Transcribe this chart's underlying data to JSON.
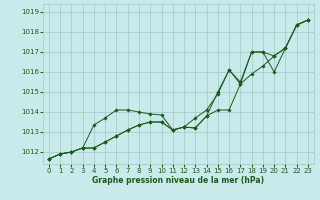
{
  "xlabel": "Graphe pression niveau de la mer (hPa)",
  "bg_color": "#c8eaea",
  "grid_color": "#a0c8c8",
  "line_color": "#1a5c1a",
  "x_ticks": [
    0,
    1,
    2,
    3,
    4,
    5,
    6,
    7,
    8,
    9,
    10,
    11,
    12,
    13,
    14,
    15,
    16,
    17,
    18,
    19,
    20,
    21,
    22,
    23
  ],
  "y_ticks": [
    1012,
    1013,
    1014,
    1015,
    1016,
    1017,
    1018,
    1019
  ],
  "ylim": [
    1011.4,
    1019.4
  ],
  "xlim": [
    -0.5,
    23.5
  ],
  "series": [
    [
      1011.65,
      1011.9,
      1012.0,
      1012.2,
      1013.35,
      1013.7,
      1014.1,
      1014.1,
      1014.0,
      1013.9,
      1013.85,
      1013.1,
      1013.25,
      1013.7,
      1014.1,
      1014.9,
      1016.1,
      1015.5,
      1017.0,
      1017.0,
      1016.0,
      1017.2,
      1018.35,
      1018.6
    ],
    [
      1011.65,
      1011.9,
      1012.0,
      1012.2,
      1012.2,
      1012.5,
      1012.8,
      1013.1,
      1013.35,
      1013.5,
      1013.5,
      1013.1,
      1013.25,
      1013.2,
      1013.8,
      1014.1,
      1014.1,
      1015.4,
      1015.9,
      1016.3,
      1016.8,
      1017.2,
      1018.35,
      1018.6
    ],
    [
      1011.65,
      1011.9,
      1012.0,
      1012.2,
      1012.2,
      1012.5,
      1012.8,
      1013.1,
      1013.35,
      1013.5,
      1013.5,
      1013.1,
      1013.25,
      1013.2,
      1013.8,
      1015.0,
      1016.1,
      1015.4,
      1017.0,
      1017.0,
      1016.8,
      1017.2,
      1018.35,
      1018.6
    ]
  ]
}
